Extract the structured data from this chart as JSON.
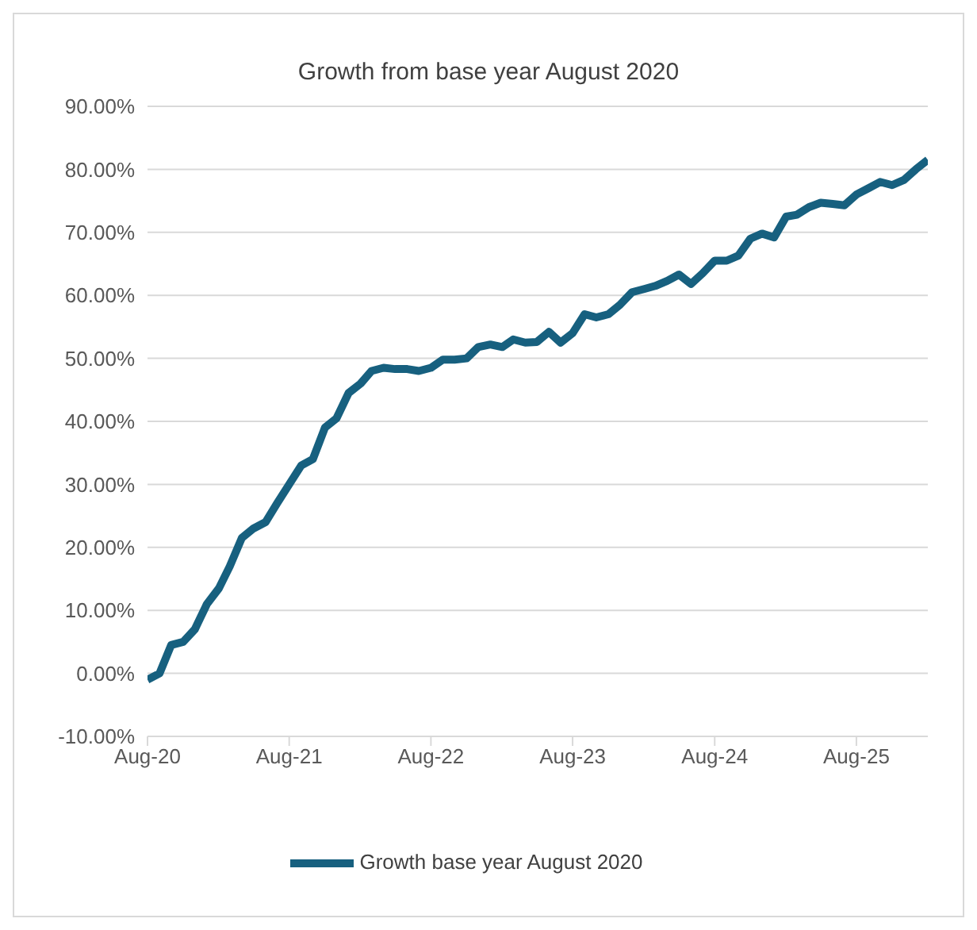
{
  "chart_data": {
    "type": "line",
    "title": "Growth from base year August 2020",
    "x": [
      "2020-08",
      "2020-09",
      "2020-10",
      "2020-11",
      "2020-12",
      "2021-01",
      "2021-02",
      "2021-03",
      "2021-04",
      "2021-05",
      "2021-06",
      "2021-07",
      "2021-08",
      "2021-09",
      "2021-10",
      "2021-11",
      "2021-12",
      "2022-01",
      "2022-02",
      "2022-03",
      "2022-04",
      "2022-05",
      "2022-06",
      "2022-07",
      "2022-08",
      "2022-09",
      "2022-10",
      "2022-11",
      "2022-12",
      "2023-01",
      "2023-02",
      "2023-03",
      "2023-04",
      "2023-05",
      "2023-06",
      "2023-07",
      "2023-08",
      "2023-09",
      "2023-10",
      "2023-11",
      "2023-12",
      "2024-01",
      "2024-02",
      "2024-03",
      "2024-04",
      "2024-05",
      "2024-06",
      "2024-07",
      "2024-08",
      "2024-09",
      "2024-10",
      "2024-11",
      "2024-12",
      "2025-01",
      "2025-02",
      "2025-03",
      "2025-04",
      "2025-05",
      "2025-06",
      "2025-07",
      "2025-08",
      "2025-09",
      "2025-10",
      "2025-11",
      "2025-12",
      "2026-01",
      "2026-02"
    ],
    "series": [
      {
        "name": "Growth base year August 2020",
        "color": "#17607f",
        "values": [
          -1,
          0,
          4.5,
          5,
          7,
          11,
          13.5,
          17,
          21.5,
          23,
          24,
          27,
          30,
          33,
          34,
          39,
          40.5,
          44.5,
          46,
          48,
          48.5,
          48.3,
          48.3,
          48,
          48.5,
          49.8,
          49.8,
          50,
          51.8,
          52.2,
          51.8,
          53,
          52.5,
          52.6,
          54.2,
          52.5,
          54,
          57,
          56.5,
          57,
          58.5,
          60.5,
          61,
          61.5,
          62.3,
          63.3,
          61.8,
          63.5,
          65.5,
          65.5,
          66.3,
          69,
          69.8,
          69.2,
          72.5,
          72.8,
          74,
          74.7,
          74.5,
          74.3,
          76,
          77,
          78,
          77.5,
          78.3,
          80,
          81.5
        ]
      }
    ],
    "xlim": [
      "2020-08",
      "2026-02"
    ],
    "xticks": [
      {
        "value": "2020-08",
        "label": "Aug-20"
      },
      {
        "value": "2021-08",
        "label": "Aug-21"
      },
      {
        "value": "2022-08",
        "label": "Aug-22"
      },
      {
        "value": "2023-08",
        "label": "Aug-23"
      },
      {
        "value": "2024-08",
        "label": "Aug-24"
      },
      {
        "value": "2025-08",
        "label": "Aug-25"
      }
    ],
    "ylim": [
      -10,
      90
    ],
    "yticks": [
      {
        "value": -10,
        "label": "-10.00%"
      },
      {
        "value": 0,
        "label": "0.00%"
      },
      {
        "value": 10,
        "label": "10.00%"
      },
      {
        "value": 20,
        "label": "20.00%"
      },
      {
        "value": 30,
        "label": "30.00%"
      },
      {
        "value": 40,
        "label": "40.00%"
      },
      {
        "value": 50,
        "label": "50.00%"
      },
      {
        "value": 60,
        "label": "60.00%"
      },
      {
        "value": 70,
        "label": "70.00%"
      },
      {
        "value": 80,
        "label": "80.00%"
      },
      {
        "value": 90,
        "label": "90.00%"
      }
    ],
    "grid": "y",
    "legend": "bottom",
    "marker": "none",
    "line_style": "solid"
  }
}
